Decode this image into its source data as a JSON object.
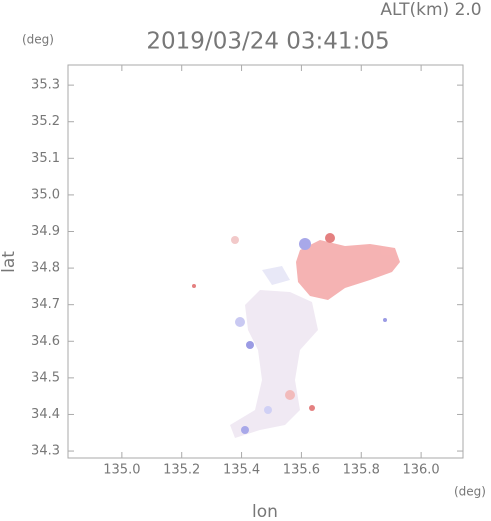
{
  "chart_data": {
    "type": "map",
    "title": "2019/03/24 03:41:05",
    "subtitle": "ALT(km) 2.0",
    "x_label": "lon",
    "y_label": "lat",
    "x_unit": "(deg)",
    "y_unit": "(deg)",
    "xlim": [
      134.82,
      136.14
    ],
    "ylim": [
      34.281,
      35.355
    ],
    "xticks": [
      {
        "value": 135.0,
        "label": "135.0"
      },
      135.2,
      135.4,
      135.6,
      135.8,
      {
        "value": 136.0,
        "label": "136.0"
      }
    ],
    "yticks": [
      34.3,
      34.4,
      34.5,
      34.6,
      34.7,
      34.8,
      34.9,
      {
        "value": 35.0,
        "label": "35.0"
      },
      35.1,
      35.2,
      35.3
    ]
  }
}
